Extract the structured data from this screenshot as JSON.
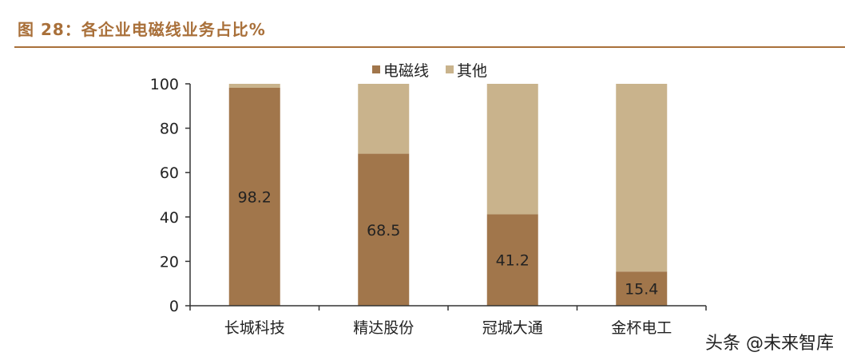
{
  "figure_title": "图 28：各企业电磁线业务占比%",
  "watermark": "头条 @未来智库",
  "colors": {
    "title": "#a9703a",
    "series1": "#a1764b",
    "series2": "#c9b38c",
    "axis": "#333333"
  },
  "chart_data": {
    "type": "bar",
    "stacked": true,
    "categories": [
      "长城科技",
      "精达股份",
      "冠城大通",
      "金杯电工"
    ],
    "series": [
      {
        "name": "电磁线",
        "values": [
          98.2,
          68.5,
          41.2,
          15.4
        ],
        "labels": [
          "98.2",
          "68.5",
          "41.2",
          "15.4"
        ]
      },
      {
        "name": "其他",
        "values": [
          1.8,
          31.5,
          58.8,
          84.6
        ]
      }
    ],
    "ylim": [
      0,
      100
    ],
    "yticks": [
      "0",
      "20",
      "40",
      "60",
      "80",
      "100"
    ],
    "legend_position": "top",
    "grid": false
  }
}
